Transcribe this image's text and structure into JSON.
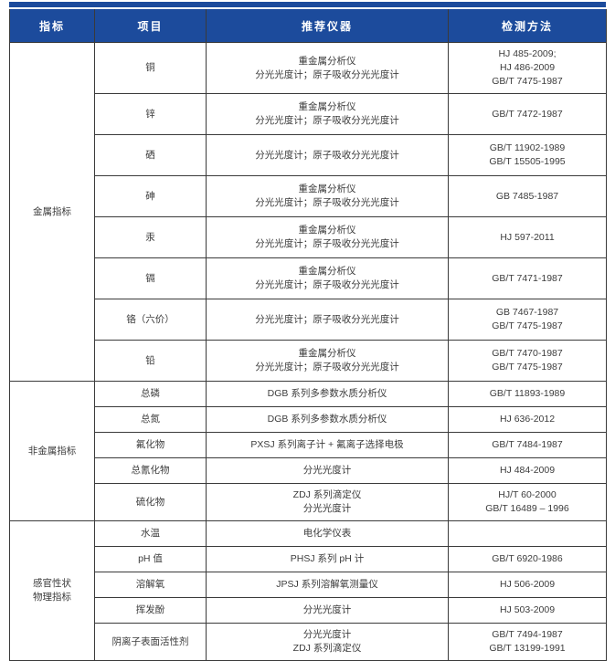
{
  "accent_color": "#1c4b9c",
  "border_color": "#3a3a3a",
  "table": {
    "header": [
      "指标",
      "项目",
      "推荐仪器",
      "检测方法"
    ],
    "sections": [
      {
        "label_lines": [
          "金属指标"
        ],
        "rows": [
          {
            "item": "铜",
            "instrument": [
              "重金属分析仪",
              "分光光度计；原子吸收分光光度计"
            ],
            "method": [
              "HJ 485-2009;",
              "HJ 486-2009",
              "GB/T 7475-1987"
            ]
          },
          {
            "item": "锌",
            "instrument": [
              "重金属分析仪",
              "分光光度计；原子吸收分光光度计"
            ],
            "method": [
              "GB/T 7472-1987"
            ]
          },
          {
            "item": "硒",
            "instrument": [
              "分光光度计；原子吸收分光光度计"
            ],
            "method": [
              "GB/T 11902-1989",
              "GB/T 15505-1995"
            ]
          },
          {
            "item": "砷",
            "instrument": [
              "重金属分析仪",
              "分光光度计；原子吸收分光光度计"
            ],
            "method": [
              "GB 7485-1987"
            ]
          },
          {
            "item": "汞",
            "instrument": [
              "重金属分析仪",
              "分光光度计；原子吸收分光光度计"
            ],
            "method": [
              "HJ 597-2011"
            ]
          },
          {
            "item": "镉",
            "instrument": [
              "重金属分析仪",
              "分光光度计；原子吸收分光光度计"
            ],
            "method": [
              "GB/T 7471-1987"
            ]
          },
          {
            "item": "铬（六价）",
            "instrument": [
              "分光光度计；原子吸收分光光度计"
            ],
            "method": [
              "GB 7467-1987",
              "GB/T 7475-1987"
            ]
          },
          {
            "item": "铅",
            "instrument": [
              "重金属分析仪",
              "分光光度计；原子吸收分光光度计"
            ],
            "method": [
              "GB/T 7470-1987",
              "GB/T 7475-1987"
            ]
          }
        ]
      },
      {
        "label_lines": [
          "非金属指标"
        ],
        "rows": [
          {
            "item": "总磷",
            "instrument": [
              "DGB 系列多参数水质分析仪"
            ],
            "method": [
              "GB/T 11893-1989"
            ]
          },
          {
            "item": "总氮",
            "instrument": [
              "DGB 系列多参数水质分析仪"
            ],
            "method": [
              "HJ 636-2012"
            ]
          },
          {
            "item": "氟化物",
            "instrument": [
              "PXSJ 系列离子计 + 氟离子选择电极"
            ],
            "method": [
              "GB/T 7484-1987"
            ]
          },
          {
            "item": "总氰化物",
            "instrument": [
              "分光光度计"
            ],
            "method": [
              "HJ 484-2009"
            ]
          },
          {
            "item": "硫化物",
            "instrument": [
              "ZDJ 系列滴定仪",
              "分光光度计"
            ],
            "method": [
              "HJ/T 60-2000",
              "GB/T 16489 – 1996"
            ]
          }
        ]
      },
      {
        "label_lines": [
          "感官性状",
          "物理指标"
        ],
        "rows": [
          {
            "item": "水温",
            "instrument": [
              "电化学仪表"
            ],
            "method": []
          },
          {
            "item": "pH 值",
            "instrument": [
              "PHSJ 系列 pH 计"
            ],
            "method": [
              "GB/T 6920-1986"
            ]
          },
          {
            "item": "溶解氧",
            "instrument": [
              "JPSJ 系列溶解氧测量仪"
            ],
            "method": [
              "HJ 506-2009"
            ]
          },
          {
            "item": "挥发酚",
            "instrument": [
              "分光光度计"
            ],
            "method": [
              "HJ 503-2009"
            ]
          },
          {
            "item": "阴离子表面活性剂",
            "instrument": [
              "分光光度计",
              "ZDJ 系列滴定仪"
            ],
            "method": [
              "GB/T 7494-1987",
              "GB/T 13199-1991"
            ]
          }
        ]
      }
    ]
  }
}
